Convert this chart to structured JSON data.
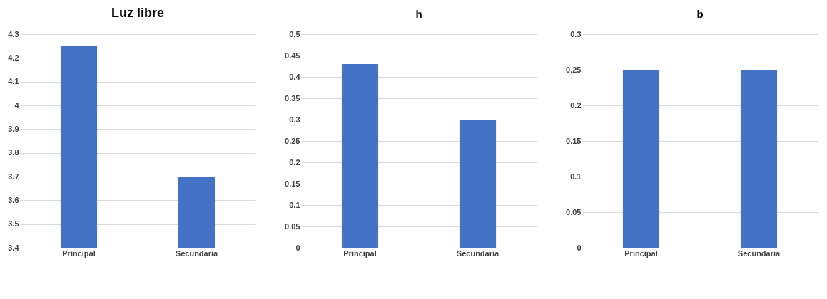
{
  "chart_data": [
    {
      "type": "bar",
      "title": "Luz libre",
      "categories": [
        "Principal",
        "Secundaria"
      ],
      "values": [
        4.25,
        3.7
      ],
      "color": "#4472c4",
      "ylim": [
        3.4,
        4.3
      ],
      "yticks": [
        3.4,
        3.5,
        3.6,
        3.7,
        3.8,
        3.9,
        4,
        4.1,
        4.2,
        4.3
      ],
      "grid": "y"
    },
    {
      "type": "bar",
      "title": "h",
      "categories": [
        "Principal",
        "Secundaria"
      ],
      "values": [
        0.43,
        0.3
      ],
      "color": "#4472c4",
      "ylim": [
        0,
        0.5
      ],
      "yticks": [
        0,
        0.05,
        0.1,
        0.15,
        0.2,
        0.25,
        0.3,
        0.35,
        0.4,
        0.45,
        0.5
      ],
      "grid": "y"
    },
    {
      "type": "bar",
      "title": "b",
      "categories": [
        "Principal",
        "Secundaria"
      ],
      "values": [
        0.25,
        0.25
      ],
      "color": "#4472c4",
      "ylim": [
        0,
        0.3
      ],
      "yticks": [
        0,
        0.05,
        0.1,
        0.15,
        0.2,
        0.25,
        0.3
      ],
      "grid": "y"
    }
  ]
}
